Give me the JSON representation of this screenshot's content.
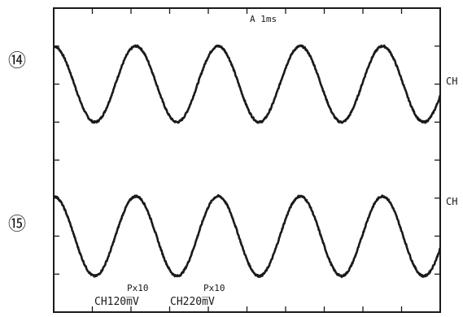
{
  "chart_data": {
    "type": "line",
    "title": "",
    "timebase": "A  1ms",
    "ylim": [
      -4,
      4
    ],
    "xlim": [
      0,
      10
    ],
    "grid": "frame-with-edge-ticks",
    "series": [
      {
        "trace_label": "⑭",
        "marker": "CH",
        "offset": 2,
        "amplitude": 1,
        "cycles_per_div": 0.47,
        "phase_deg": 0,
        "probe": "Px10",
        "scale": "CH120m̅V"
      },
      {
        "trace_label": "⑮",
        "marker": "CH",
        "offset": -2,
        "amplitude": 1.05,
        "cycles_per_div": 0.47,
        "phase_deg": 0,
        "probe": "Px10",
        "scale": "CH220m̅V"
      }
    ],
    "colors": {
      "trace": "#1a1a1a",
      "frame": "#1a1a1a",
      "background": "#ffffff"
    }
  }
}
